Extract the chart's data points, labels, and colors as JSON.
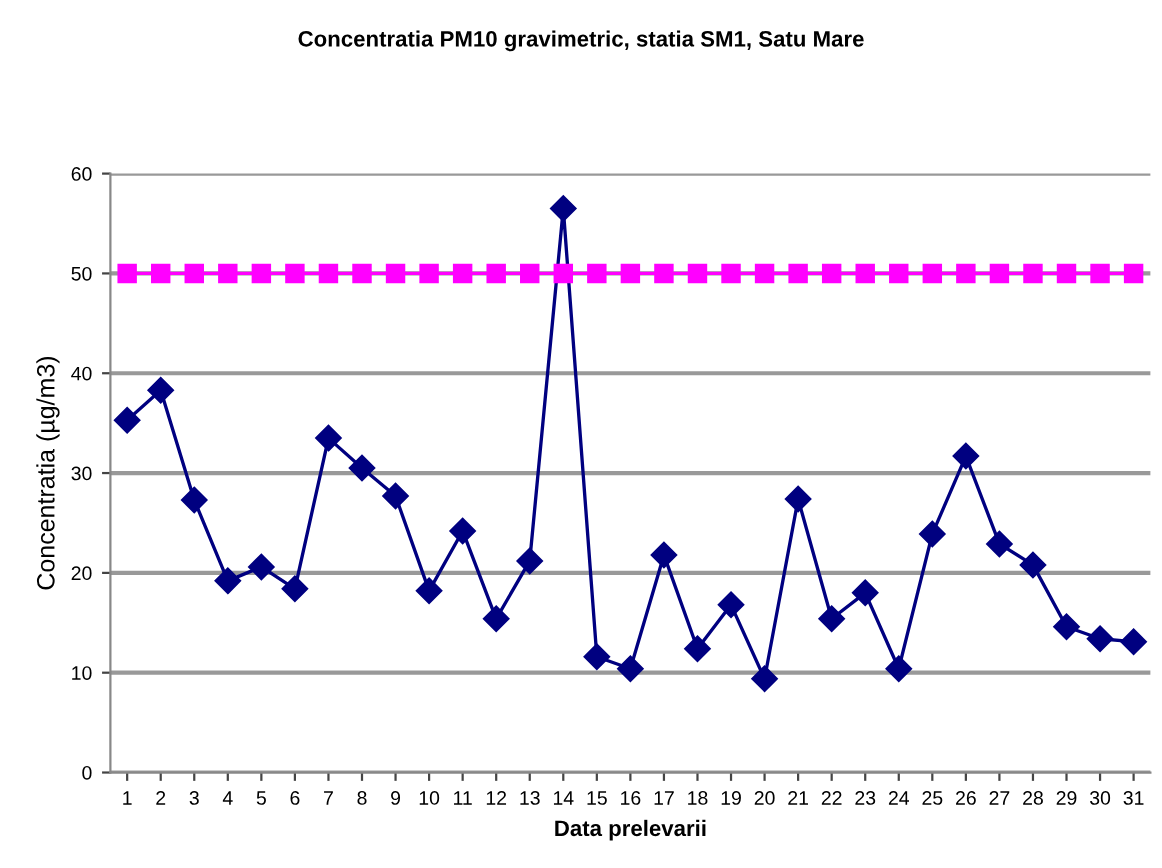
{
  "chart_data": {
    "type": "line",
    "title": "Concentratia PM10 gravimetric, statia SM1, Satu Mare",
    "xlabel": "Data prelevarii",
    "ylabel": "Concentratia (µg/m3)",
    "categories": [
      "1",
      "2",
      "3",
      "4",
      "5",
      "6",
      "7",
      "8",
      "9",
      "10",
      "11",
      "12",
      "13",
      "14",
      "15",
      "16",
      "17",
      "18",
      "19",
      "20",
      "21",
      "22",
      "23",
      "24",
      "25",
      "26",
      "27",
      "28",
      "29",
      "30",
      "31"
    ],
    "series": [
      {
        "color": "#000080",
        "marker": "diamond",
        "values": [
          35.3,
          38.3,
          27.3,
          19.2,
          20.6,
          18.4,
          33.5,
          30.5,
          27.7,
          18.2,
          24.2,
          15.4,
          21.2,
          56.5,
          11.6,
          10.4,
          21.8,
          12.4,
          16.8,
          9.4,
          27.4,
          15.4,
          18.0,
          10.4,
          23.9,
          31.7,
          22.9,
          20.8,
          14.6,
          13.4,
          13.1
        ]
      },
      {
        "color": "#ff00ff",
        "marker": "square",
        "values": [
          50,
          50,
          50,
          50,
          50,
          50,
          50,
          50,
          50,
          50,
          50,
          50,
          50,
          50,
          50,
          50,
          50,
          50,
          50,
          50,
          50,
          50,
          50,
          50,
          50,
          50,
          50,
          50,
          50,
          50,
          50
        ]
      }
    ],
    "ylim": [
      0,
      60
    ],
    "yticks": [
      0,
      10,
      20,
      30,
      40,
      50,
      60
    ],
    "grid": "y",
    "line_style": "solid"
  }
}
